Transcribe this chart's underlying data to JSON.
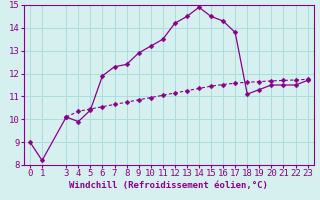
{
  "xlabel": "Windchill (Refroidissement éolien,°C)",
  "xlim": [
    -0.5,
    23.5
  ],
  "ylim": [
    8,
    15
  ],
  "yticks": [
    8,
    9,
    10,
    11,
    12,
    13,
    14,
    15
  ],
  "xticks": [
    0,
    1,
    3,
    4,
    5,
    6,
    7,
    8,
    9,
    10,
    11,
    12,
    13,
    14,
    15,
    16,
    17,
    18,
    19,
    20,
    21,
    22,
    23
  ],
  "line1_x": [
    0,
    1,
    3,
    4,
    5,
    6,
    7,
    8,
    9,
    10,
    11,
    12,
    13,
    14,
    15,
    16,
    17,
    18,
    19,
    20,
    21,
    22,
    23
  ],
  "line1_y": [
    9.0,
    8.2,
    10.1,
    9.9,
    10.4,
    11.9,
    12.3,
    12.4,
    12.9,
    13.2,
    13.5,
    14.2,
    14.5,
    14.9,
    14.5,
    14.3,
    13.8,
    11.1,
    11.3,
    11.5,
    11.5,
    11.5,
    11.7
  ],
  "line2_x": [
    3,
    4,
    5,
    6,
    7,
    8,
    9,
    10,
    11,
    12,
    13,
    14,
    15,
    16,
    17,
    18,
    19,
    20,
    21,
    22,
    23
  ],
  "line2_y": [
    10.1,
    10.35,
    10.45,
    10.55,
    10.65,
    10.75,
    10.85,
    10.95,
    11.05,
    11.15,
    11.25,
    11.35,
    11.45,
    11.52,
    11.58,
    11.62,
    11.65,
    11.68,
    11.7,
    11.72,
    11.75
  ],
  "line_color": "#8B008B",
  "bg_color": "#d6f0f0",
  "grid_color": "#aadddd",
  "xlabel_fontsize": 6.5,
  "tick_fontsize": 6.5,
  "markersize": 2.5
}
